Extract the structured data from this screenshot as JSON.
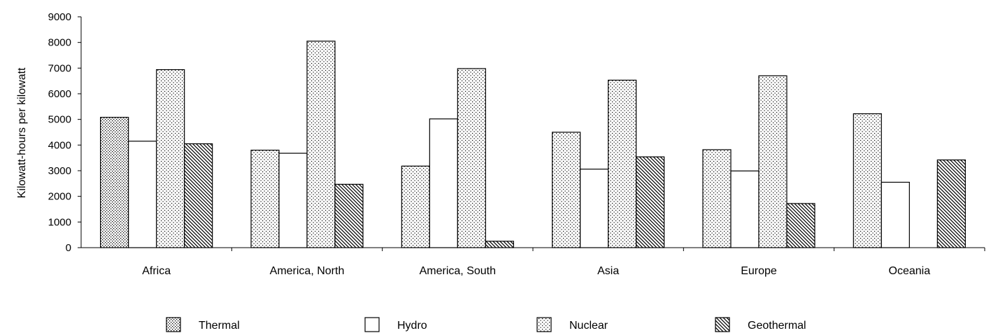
{
  "chart_data": {
    "type": "bar",
    "title": "",
    "xlabel": "",
    "ylabel": "Kilowatt-hours per kilowatt",
    "ylim": [
      0,
      9000
    ],
    "yticks": [
      0,
      1000,
      2000,
      3000,
      4000,
      5000,
      6000,
      7000,
      8000,
      9000
    ],
    "ytick_labels": [
      "0",
      "1000",
      "2000",
      "3000",
      "4000",
      "5000",
      "6000",
      "7000",
      "8000",
      "9000"
    ],
    "categories": [
      "Africa",
      "America, North",
      "America, South",
      "Asia",
      "Europe",
      "Oceania"
    ],
    "series": [
      {
        "name": "Thermal",
        "pattern": "dots",
        "values": [
          5080,
          3800,
          3180,
          4500,
          3820,
          5220
        ]
      },
      {
        "name": "Hydro",
        "pattern": "solid-white",
        "values": [
          4150,
          3680,
          5020,
          3060,
          2990,
          2550
        ]
      },
      {
        "name": "Nuclear",
        "pattern": "dots",
        "values": [
          6940,
          8050,
          6980,
          6530,
          6700,
          null
        ]
      },
      {
        "name": "Geothermal",
        "pattern": "diagonal-hatch",
        "values": [
          4050,
          2470,
          250,
          3540,
          1720,
          3420
        ]
      }
    ],
    "grid": false,
    "legend_position": "bottom"
  }
}
